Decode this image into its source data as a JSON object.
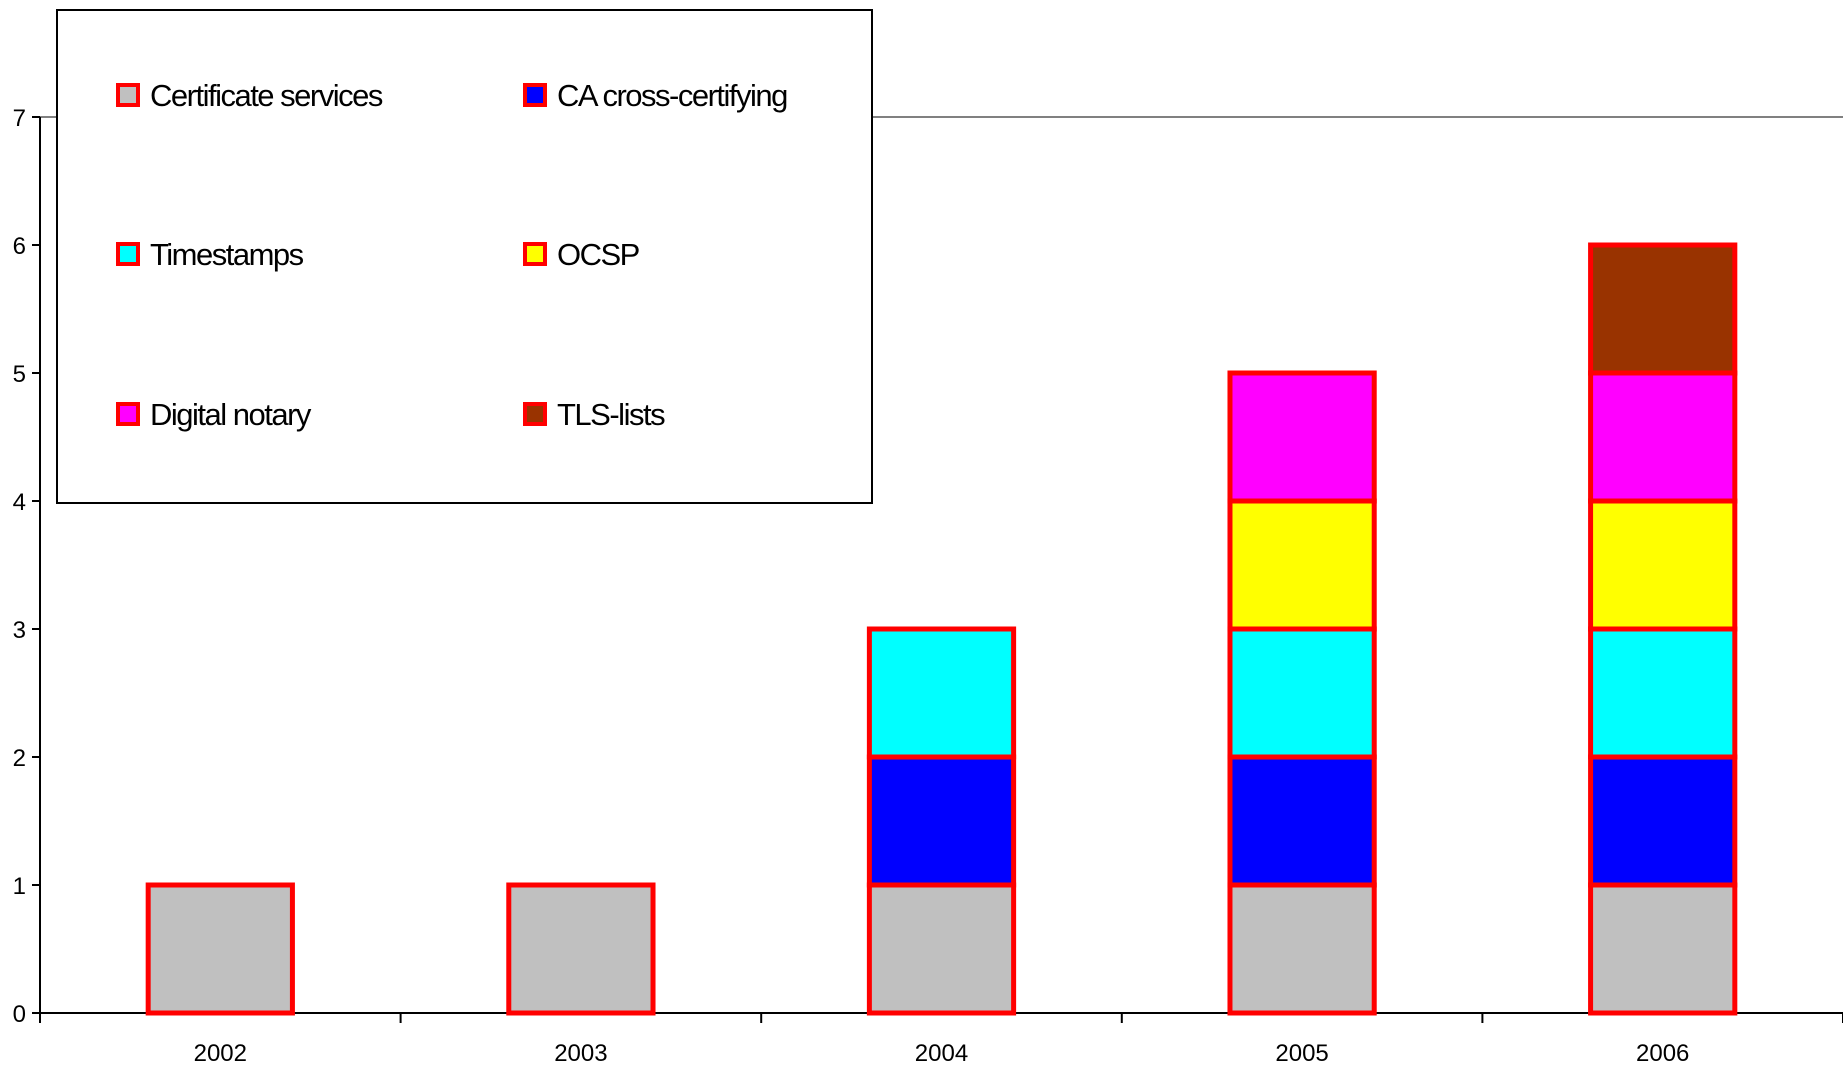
{
  "chart_data": {
    "type": "bar",
    "stacked": true,
    "categories": [
      "2002",
      "2003",
      "2004",
      "2005",
      "2006"
    ],
    "series": [
      {
        "name": "Certificate services",
        "color": "#C0C0C0",
        "values": [
          1,
          1,
          1,
          1,
          1
        ]
      },
      {
        "name": "CA cross-certifying",
        "color": "#0000FF",
        "values": [
          0,
          0,
          1,
          1,
          1
        ]
      },
      {
        "name": "Timestamps",
        "color": "#00FFFF",
        "values": [
          0,
          0,
          1,
          1,
          1
        ]
      },
      {
        "name": "OCSP",
        "color": "#FFFF00",
        "values": [
          0,
          0,
          0,
          1,
          1
        ]
      },
      {
        "name": "Digital notary",
        "color": "#FF00FF",
        "values": [
          0,
          0,
          0,
          1,
          1
        ]
      },
      {
        "name": "TLS-lists",
        "color": "#993300",
        "values": [
          0,
          0,
          0,
          0,
          1
        ]
      }
    ],
    "bar_outline_color": "#FF0000",
    "y_ticks": [
      "0",
      "1",
      "2",
      "3",
      "4",
      "5",
      "6",
      "7"
    ],
    "ylim": [
      0,
      7
    ],
    "title": "",
    "xlabel": "",
    "ylabel": "",
    "grid": "major line at 7 only",
    "legend_position": "top-left"
  }
}
